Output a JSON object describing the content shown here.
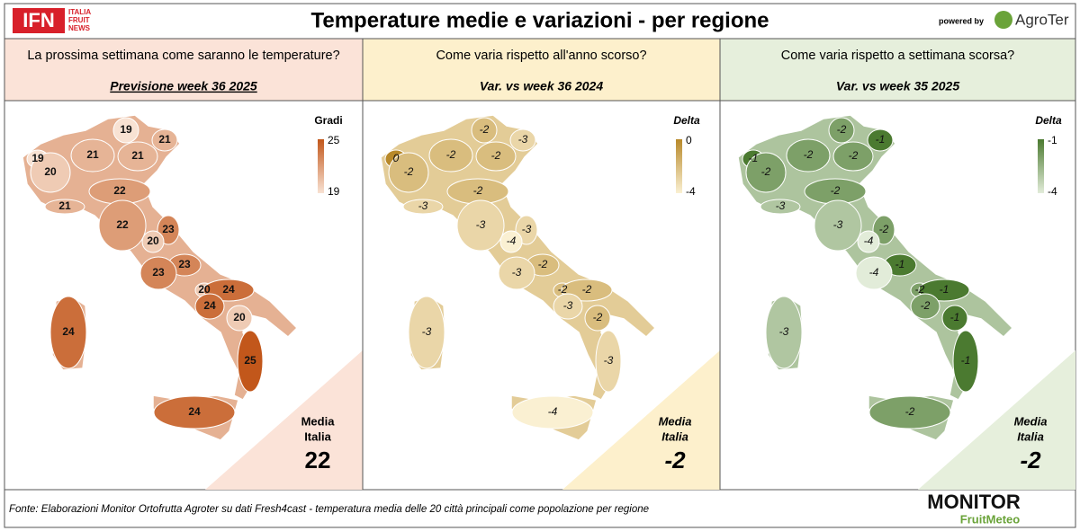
{
  "header": {
    "logo": "IFN",
    "logo_sub": [
      "ITALIA",
      "FRUIT",
      "NEWS"
    ],
    "title": "Temperature medie e variazioni - per regione",
    "powered_by": "powered by",
    "brand": "AgroTer"
  },
  "panels": [
    {
      "question": "La prossima settimana come saranno le temperature?",
      "subtitle": "Previsione week 36 2025",
      "header_color": "#fbe3d8",
      "legend_title": "Gradi",
      "legend_max": 25,
      "legend_min": 19,
      "color_max": "#c2571b",
      "color_min": "#f8e2d3",
      "media": [
        "Media",
        "Italia"
      ],
      "media_value": 22,
      "regions": [
        19,
        21,
        19,
        20,
        21,
        21,
        22,
        21,
        22,
        23,
        20,
        23,
        23,
        20,
        24,
        24,
        20,
        25,
        24,
        24
      ]
    },
    {
      "question": "Come varia rispetto all'anno scorso?",
      "subtitle": "Var. vs week 36 2024",
      "header_color": "#fdf0cc",
      "legend_title": "Delta",
      "legend_max": 0,
      "legend_min": -4,
      "color_max": "#b8892a",
      "color_min": "#faf0d2",
      "media": [
        "Media",
        "Italia"
      ],
      "media_value": -2,
      "regions": [
        -2,
        -3,
        0,
        -2,
        -2,
        -2,
        -2,
        -3,
        -3,
        -3,
        -4,
        -2,
        -3,
        -2,
        -2,
        -3,
        -2,
        -3,
        -3,
        -4
      ]
    },
    {
      "question": "Come varia rispetto a settimana scorsa?",
      "subtitle": "Var. vs week 35 2025",
      "header_color": "#e6efdc",
      "legend_title": "Delta",
      "legend_max": -1,
      "legend_min": -4,
      "color_max": "#4b7a30",
      "color_min": "#e2ecd9",
      "media": [
        "Media",
        "Italia"
      ],
      "media_value": -2,
      "regions": [
        -2,
        -1,
        -1,
        -2,
        -2,
        -2,
        -2,
        -3,
        -3,
        -2,
        -4,
        -1,
        -4,
        -2,
        -1,
        -2,
        -1,
        -1,
        -3,
        -2
      ]
    }
  ],
  "footer": {
    "source": "Fonte: Elaborazioni Monitor Ortofrutta Agroter su dati Fresh4cast - temperatura media delle 20 città principali come popolazione per regione",
    "monitor": "MONITOR",
    "fruitmeteo": "FruitMeteo"
  }
}
